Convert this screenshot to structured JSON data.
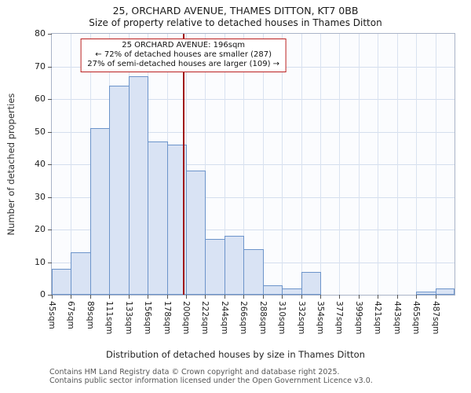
{
  "title": "25, ORCHARD AVENUE, THAMES DITTON, KT7 0BB",
  "subtitle": "Size of property relative to detached houses in Thames Ditton",
  "chart_data": {
    "type": "bar",
    "categories": [
      "45sqm",
      "67sqm",
      "89sqm",
      "111sqm",
      "133sqm",
      "156sqm",
      "178sqm",
      "200sqm",
      "222sqm",
      "244sqm",
      "266sqm",
      "288sqm",
      "310sqm",
      "332sqm",
      "354sqm",
      "377sqm",
      "399sqm",
      "421sqm",
      "443sqm",
      "465sqm",
      "487sqm"
    ],
    "values": [
      8,
      13,
      51,
      64,
      67,
      47,
      46,
      38,
      17,
      18,
      14,
      3,
      2,
      7,
      0,
      0,
      0,
      0,
      0,
      1,
      2
    ],
    "title": "25, ORCHARD AVENUE, THAMES DITTON, KT7 0BB",
    "subtitle": "Size of property relative to detached houses in Thames Ditton",
    "xlabel": "Distribution of detached houses by size in Thames Ditton",
    "ylabel": "Number of detached properties",
    "ylim": [
      0,
      80
    ],
    "ytick_step": 10,
    "grid": true,
    "legend": "none",
    "bar_fill": "#d9e3f4",
    "bar_border": "#6c94ca",
    "marker": {
      "value_sqm": 196,
      "axis_start_sqm": 45,
      "bin_size_sqm": 22,
      "line_color": "#a01010",
      "box_border_color": "#bb2020",
      "label_lines": [
        "25 ORCHARD AVENUE: 196sqm",
        "← 72% of detached houses are smaller (287)",
        "27% of semi-detached houses are larger (109) →"
      ]
    }
  },
  "footer": {
    "line1": "Contains HM Land Registry data © Crown copyright and database right 2025.",
    "line2": "Contains public sector information licensed under the Open Government Licence v3.0."
  }
}
